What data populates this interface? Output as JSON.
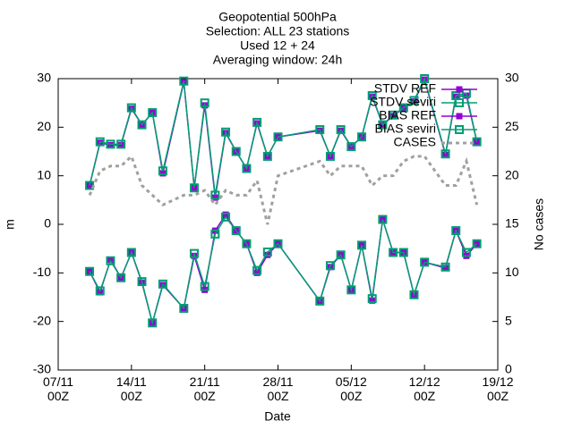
{
  "chart_data": {
    "type": "line",
    "title": [
      "Geopotential 500hPa",
      "Selection: ALL     23 stations",
      "Used 12 + 24",
      "Averaging window: 24h"
    ],
    "xlabel": "Date",
    "ylabel": "m",
    "y2label": "No cases",
    "x": [
      "10/11 00Z",
      "11/11 00Z",
      "12/11 00Z",
      "13/11 00Z",
      "14/11 00Z",
      "15/11 00Z",
      "16/11 00Z",
      "17/11 00Z",
      "19/11 00Z",
      "20/11 00Z",
      "21/11 00Z",
      "22/11 00Z",
      "23/11 00Z",
      "24/11 00Z",
      "25/11 00Z",
      "26/11 00Z",
      "27/11 00Z",
      "28/11 00Z",
      "02/12 00Z",
      "03/12 00Z",
      "04/12 00Z",
      "05/12 00Z",
      "06/12 00Z",
      "07/12 00Z",
      "08/12 00Z",
      "09/12 00Z",
      "10/12 00Z",
      "11/12 00Z",
      "12/12 00Z",
      "14/12 00Z",
      "15/12 00Z",
      "16/12 00Z",
      "17/12 00Z"
    ],
    "xlim": [
      "07/11 00Z",
      "19/12 00Z"
    ],
    "xticks": [
      "07/11 00Z",
      "14/11 00Z",
      "21/11 00Z",
      "28/11 00Z",
      "05/12 00Z",
      "12/12 00Z",
      "19/12 00Z"
    ],
    "ylim": [
      -30,
      30
    ],
    "yticks": [
      -30,
      -20,
      -10,
      0,
      10,
      20,
      30
    ],
    "y2lim": [
      0,
      30
    ],
    "y2ticks": [
      0,
      5,
      10,
      15,
      20,
      25,
      30
    ],
    "legend": "top right",
    "grid": false,
    "series": [
      {
        "name": "STDV REF",
        "color": "#9400d3",
        "marker": "filled",
        "values": [
          8,
          16.8,
          16.3,
          16.3,
          23.8,
          20.5,
          23,
          10.5,
          29.3,
          7.5,
          24.5,
          5.5,
          18.8,
          15,
          11.5,
          20.8,
          14,
          18,
          19.3,
          14,
          19.3,
          16,
          18,
          26.3,
          20.5,
          22.3,
          24,
          25.3,
          29.8,
          14.3,
          26.3,
          26.5,
          17
        ]
      },
      {
        "name": "STDV seviri",
        "color": "#009e73",
        "marker": "open",
        "values": [
          8,
          17,
          16.5,
          16.5,
          24,
          20.5,
          23,
          11,
          29.5,
          7.5,
          25,
          6,
          19,
          15,
          11.5,
          21,
          14,
          18,
          19.5,
          14,
          19.5,
          16,
          18,
          26.5,
          20.5,
          22.5,
          24,
          25.5,
          30,
          14.5,
          26.5,
          27,
          17
        ]
      },
      {
        "name": "BIAS REF",
        "color": "#9400d3",
        "marker": "filled",
        "values": [
          -9.7,
          -14,
          -7.3,
          -11,
          -5.8,
          -12,
          -20.3,
          -12.5,
          -17.3,
          -6.5,
          -13.5,
          -1.3,
          2,
          -1.3,
          -4,
          -10,
          -6.3,
          -4,
          -15.8,
          -8.8,
          -6.3,
          -13.5,
          -4.3,
          -15.7,
          1,
          -5.8,
          -5.8,
          -14.5,
          -7.8,
          -9,
          -1.3,
          -6.5,
          -4
        ]
      },
      {
        "name": "BIAS seviri",
        "color": "#009e73",
        "marker": "open",
        "values": [
          -9.7,
          -13.7,
          -7.5,
          -11,
          -5.8,
          -11.8,
          -20.3,
          -12.3,
          -17.3,
          -6,
          -12.8,
          -2,
          1.5,
          -1.3,
          -4,
          -9.5,
          -5.7,
          -4,
          -15.8,
          -8.5,
          -6.3,
          -13.5,
          -4.3,
          -15.3,
          1,
          -5.8,
          -5.8,
          -14.5,
          -7.8,
          -8.8,
          -1.3,
          -5.8,
          -4
        ]
      },
      {
        "name": "CASES",
        "color": "#a0a0a0",
        "marker": "none",
        "dashed": true,
        "axis": "y2",
        "values": [
          18,
          20.5,
          21,
          21,
          22,
          19,
          18,
          17,
          18,
          18,
          18.5,
          17,
          18.5,
          18,
          18,
          19.5,
          15,
          20,
          21.5,
          20,
          21,
          21,
          21,
          19,
          20,
          20,
          21.5,
          22,
          22,
          19,
          19,
          21.5,
          17
        ]
      }
    ]
  }
}
